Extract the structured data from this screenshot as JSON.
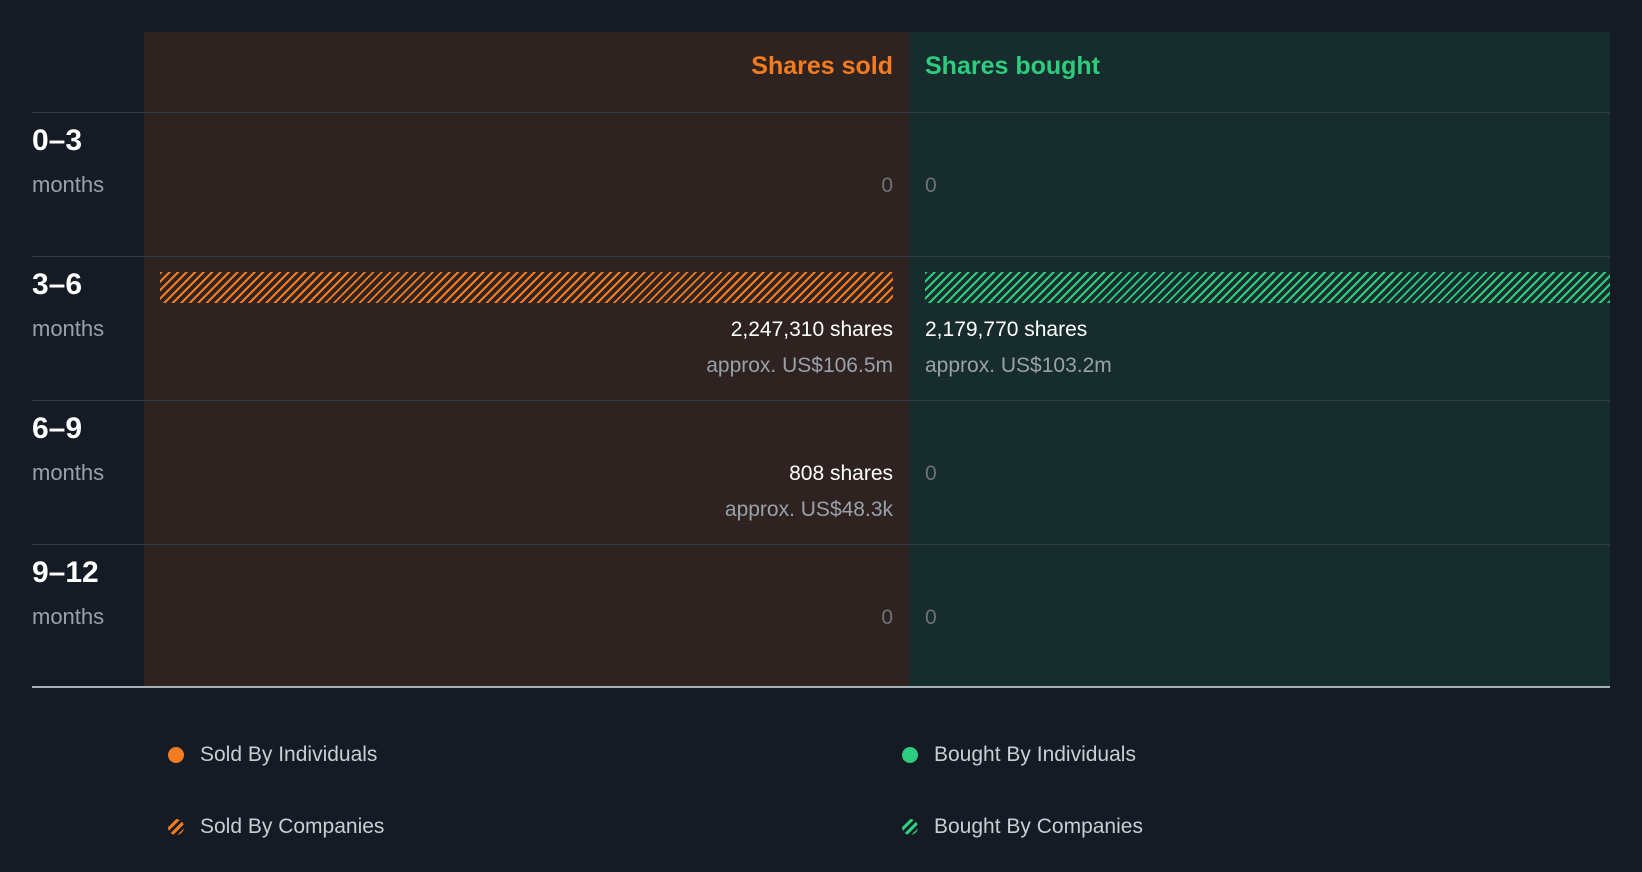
{
  "colors": {
    "sold": "#f47b20",
    "bought": "#2ecc7e",
    "background": "#151b24"
  },
  "chart_data": {
    "type": "bar",
    "headers": {
      "sold": "Shares sold",
      "bought": "Shares bought"
    },
    "categories": [
      {
        "period": "0–3",
        "unit": "months"
      },
      {
        "period": "3–6",
        "unit": "months"
      },
      {
        "period": "6–9",
        "unit": "months"
      },
      {
        "period": "9–12",
        "unit": "months"
      }
    ],
    "series": [
      {
        "name": "Sold By Individuals",
        "values": [
          0,
          0,
          808,
          0
        ]
      },
      {
        "name": "Sold By Companies",
        "values": [
          0,
          2247310,
          0,
          0
        ]
      },
      {
        "name": "Bought By Individuals",
        "values": [
          0,
          0,
          0,
          0
        ]
      },
      {
        "name": "Bought By Companies",
        "values": [
          0,
          2179770,
          0,
          0
        ]
      }
    ],
    "rows": [
      {
        "sold": {
          "zero": "0"
        },
        "bought": {
          "zero": "0"
        }
      },
      {
        "sold": {
          "shares": "2,247,310 shares",
          "approx": "approx. US$106.5m"
        },
        "bought": {
          "shares": "2,179,770 shares",
          "approx": "approx. US$103.2m"
        }
      },
      {
        "sold": {
          "shares": "808 shares",
          "approx": "approx. US$48.3k"
        },
        "bought": {
          "zero": "0"
        }
      },
      {
        "sold": {
          "zero": "0"
        },
        "bought": {
          "zero": "0"
        }
      }
    ],
    "legend": {
      "sold_individuals": "Sold By Individuals",
      "bought_individuals": "Bought By Individuals",
      "sold_companies": "Sold By Companies",
      "bought_companies": "Bought By Companies"
    }
  }
}
